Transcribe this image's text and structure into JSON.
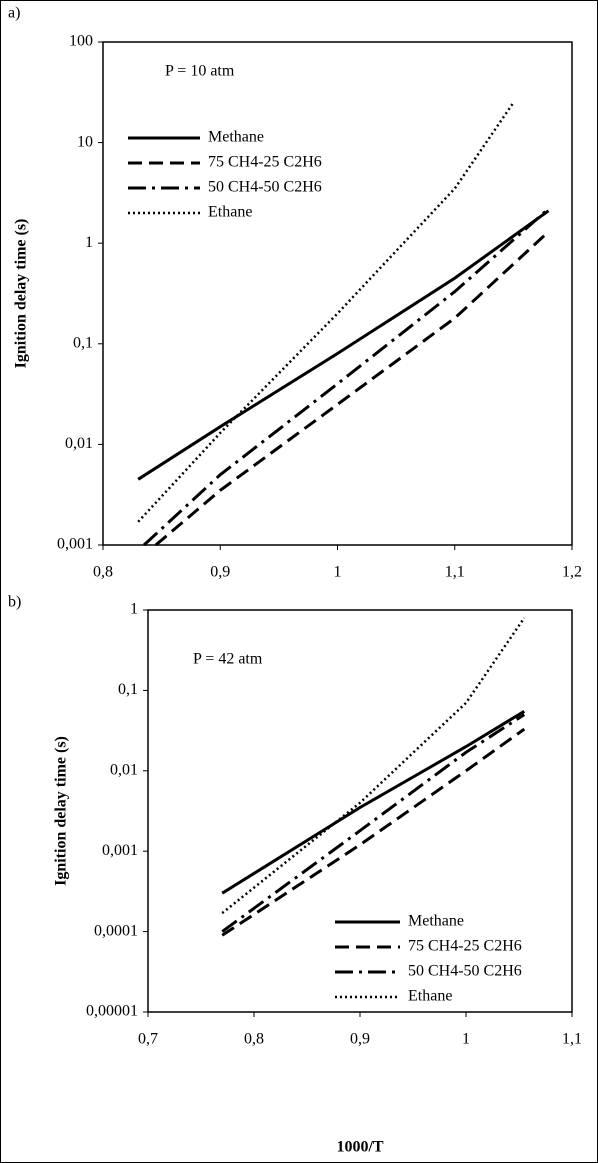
{
  "chart_data": [
    {
      "type": "line",
      "panel_label": "a)",
      "annotation": "P = 10 atm",
      "y_label": "Ignition delay time (s)",
      "yscale": "log",
      "legend": "upper left",
      "xlim": [
        0.8,
        1.2
      ],
      "ylim": [
        0.001,
        100
      ],
      "xticks": [
        {
          "value": 0.8,
          "label": "0,8"
        },
        {
          "value": 0.9,
          "label": "0,9"
        },
        1,
        {
          "value": 1.1,
          "label": "1,1"
        },
        {
          "value": 1.2,
          "label": "1,2"
        }
      ],
      "yticks": [
        {
          "value": 0.001,
          "label": "0,001"
        },
        {
          "value": 0.01,
          "label": "0,01"
        },
        {
          "value": 0.1,
          "label": "0,1"
        },
        1,
        10,
        100
      ],
      "series": [
        {
          "name": "Methane",
          "color": "#000000",
          "style": "solid",
          "x": [
            0.83,
            0.9,
            1.0,
            1.1,
            1.18
          ],
          "values": [
            0.0045,
            0.015,
            0.08,
            0.45,
            2.1
          ]
        },
        {
          "name": "75 CH4-25 C2H6",
          "color": "#000000",
          "style": "dashed",
          "x": [
            0.845,
            0.9,
            1.0,
            1.1,
            1.18
          ],
          "values": [
            0.001,
            0.0035,
            0.025,
            0.18,
            1.3
          ]
        },
        {
          "name": "50 CH4-50 C2H6",
          "color": "#000000",
          "style": "dashdot",
          "x": [
            0.835,
            0.9,
            1.0,
            1.1,
            1.18
          ],
          "values": [
            0.001,
            0.005,
            0.04,
            0.33,
            2.2
          ]
        },
        {
          "name": "Ethane",
          "color": "#000000",
          "style": "dotted",
          "x": [
            0.83,
            0.9,
            1.0,
            1.1,
            1.15
          ],
          "values": [
            0.0017,
            0.013,
            0.2,
            3.5,
            25
          ]
        }
      ]
    },
    {
      "type": "line",
      "panel_label": "b)",
      "annotation": "P = 42 atm",
      "y_label": "Ignition delay time (s)",
      "x_label": "1000/T",
      "yscale": "log",
      "legend": "lower right",
      "xlim": [
        0.7,
        1.1
      ],
      "ylim": [
        1e-05,
        1
      ],
      "xticks": [
        {
          "value": 0.7,
          "label": "0,7"
        },
        {
          "value": 0.8,
          "label": "0,8"
        },
        {
          "value": 0.9,
          "label": "0,9"
        },
        1,
        {
          "value": 1.1,
          "label": "1,1"
        }
      ],
      "yticks": [
        {
          "value": 1e-05,
          "label": "0,00001"
        },
        {
          "value": 0.0001,
          "label": "0,0001"
        },
        {
          "value": 0.001,
          "label": "0,001"
        },
        {
          "value": 0.01,
          "label": "0,01"
        },
        {
          "value": 0.1,
          "label": "0,1"
        },
        1
      ],
      "series": [
        {
          "name": "Methane",
          "color": "#000000",
          "style": "solid",
          "x": [
            0.77,
            0.9,
            1.0,
            1.055
          ],
          "values": [
            0.0003,
            0.0035,
            0.02,
            0.055
          ]
        },
        {
          "name": "75 CH4-25 C2H6",
          "color": "#000000",
          "style": "dashed",
          "x": [
            0.77,
            0.9,
            1.0,
            1.055
          ],
          "values": [
            9e-05,
            0.0012,
            0.01,
            0.033
          ]
        },
        {
          "name": "50 CH4-50 C2H6",
          "color": "#000000",
          "style": "dashdot",
          "x": [
            0.77,
            0.9,
            1.0,
            1.055
          ],
          "values": [
            0.0001,
            0.0018,
            0.017,
            0.05
          ]
        },
        {
          "name": "Ethane",
          "color": "#000000",
          "style": "dotted",
          "x": [
            0.77,
            0.9,
            1.0,
            1.055
          ],
          "values": [
            0.00017,
            0.004,
            0.07,
            0.8
          ]
        }
      ]
    }
  ]
}
